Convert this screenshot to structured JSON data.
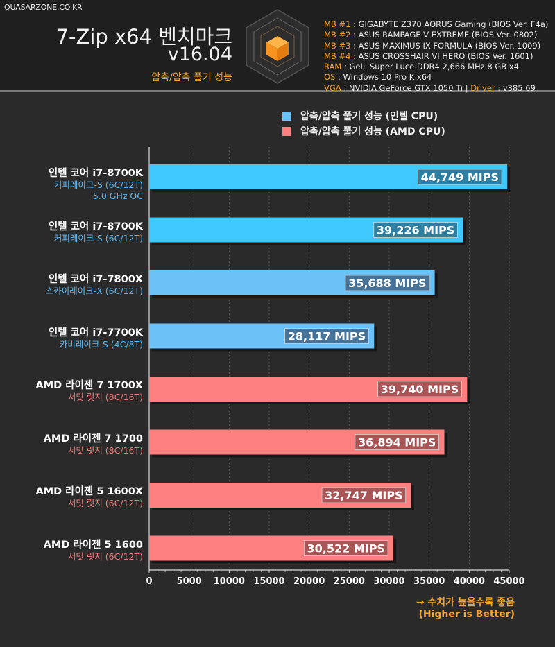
{
  "header": {
    "site": "QUASARZONE.CO.KR",
    "title_line1": "7-Zip x64 벤치마크",
    "title_line2": "v16.04",
    "subtitle": "압축/압축 풀기 성능",
    "specs": [
      {
        "key": "MB #1",
        "value": " : GIGABYTE Z370 AORUS Gaming (BIOS Ver. F4a)"
      },
      {
        "key": "MB #2",
        "value": " : ASUS RAMPAGE V EXTREME (BIOS Ver. 0802)"
      },
      {
        "key": "MB #3",
        "value": " : ASUS MAXIMUS IX FORMULA (BIOS Ver. 1009)"
      },
      {
        "key": "MB #4",
        "value": " : ASUS CROSSHAIR VI HERO (BIOS Ver. 1601)"
      },
      {
        "key": "RAM",
        "value": " : GeIL Super Luce DDR4 2,666 MHz 8 GB x4"
      },
      {
        "key": "OS",
        "value": " : Windows 10 Pro K x64"
      },
      {
        "key": "VGA",
        "value": " : NVIDIA GeForce GTX 1050 Ti | ",
        "key2": "Driver",
        "value2": " : v385.69"
      }
    ]
  },
  "colors": {
    "intel_bright": "#3fc8fb",
    "intel_light": "#6cc1f7",
    "amd": "#fd7f80",
    "accent": "#f7a526",
    "intel_sub_text": "#5ab7f2",
    "amd_sub_text": "#f37b7c"
  },
  "note": {
    "line1": "→ 수치가 높을수록 좋음",
    "line2": "(Higher is Better)"
  },
  "chart_data": {
    "type": "bar",
    "orientation": "horizontal",
    "unit": "MIPS",
    "xlim": [
      0,
      45000
    ],
    "xticks": [
      0,
      5000,
      10000,
      15000,
      20000,
      25000,
      30000,
      35000,
      40000,
      45000
    ],
    "grid": true,
    "legend_position": "top-right",
    "series": [
      {
        "name": "압축/압축 풀기 성능 (인텔 CPU)",
        "color": "#6cc1f7"
      },
      {
        "name": "압축/압축 풀기 성능 (AMD CPU)",
        "color": "#fd7f80"
      }
    ],
    "bars": [
      {
        "name": "인텔 코어 i7-8700K",
        "sub": [
          "커피레이크-S (6C/12T)",
          "5.0 GHz OC"
        ],
        "value": 44749,
        "label": "44,749 MIPS",
        "group": "intel",
        "color": "#3fc8fb"
      },
      {
        "name": "인텔 코어 i7-8700K",
        "sub": [
          "커피레이크-S (6C/12T)"
        ],
        "value": 39226,
        "label": "39,226 MIPS",
        "group": "intel",
        "color": "#3fc8fb"
      },
      {
        "name": "인텔 코어 i7-7800X",
        "sub": [
          "스카이레이크-X (6C/12T)"
        ],
        "value": 35688,
        "label": "35,688 MIPS",
        "group": "intel",
        "color": "#6cc1f7"
      },
      {
        "name": "인텔 코어 i7-7700K",
        "sub": [
          "카비레이크-S (4C/8T)"
        ],
        "value": 28117,
        "label": "28,117 MIPS",
        "group": "intel",
        "color": "#6cc1f7"
      },
      {
        "name": "AMD 라이젠 7 1700X",
        "sub": [
          "서밋 릿지 (8C/16T)"
        ],
        "value": 39740,
        "label": "39,740 MIPS",
        "group": "amd",
        "color": "#fd7f80"
      },
      {
        "name": "AMD 라이젠 7 1700",
        "sub": [
          "서밋 릿지 (8C/16T)"
        ],
        "value": 36894,
        "label": "36,894 MIPS",
        "group": "amd",
        "color": "#fd7f80"
      },
      {
        "name": "AMD 라이젠 5 1600X",
        "sub": [
          "서밋 릿지 (6C/12T)"
        ],
        "value": 32747,
        "label": "32,747 MIPS",
        "group": "amd",
        "color": "#fd7f80"
      },
      {
        "name": "AMD 라이젠 5 1600",
        "sub": [
          "서밋 릿지 (6C/12T)"
        ],
        "value": 30522,
        "label": "30,522 MIPS",
        "group": "amd",
        "color": "#fd7f80"
      }
    ]
  }
}
